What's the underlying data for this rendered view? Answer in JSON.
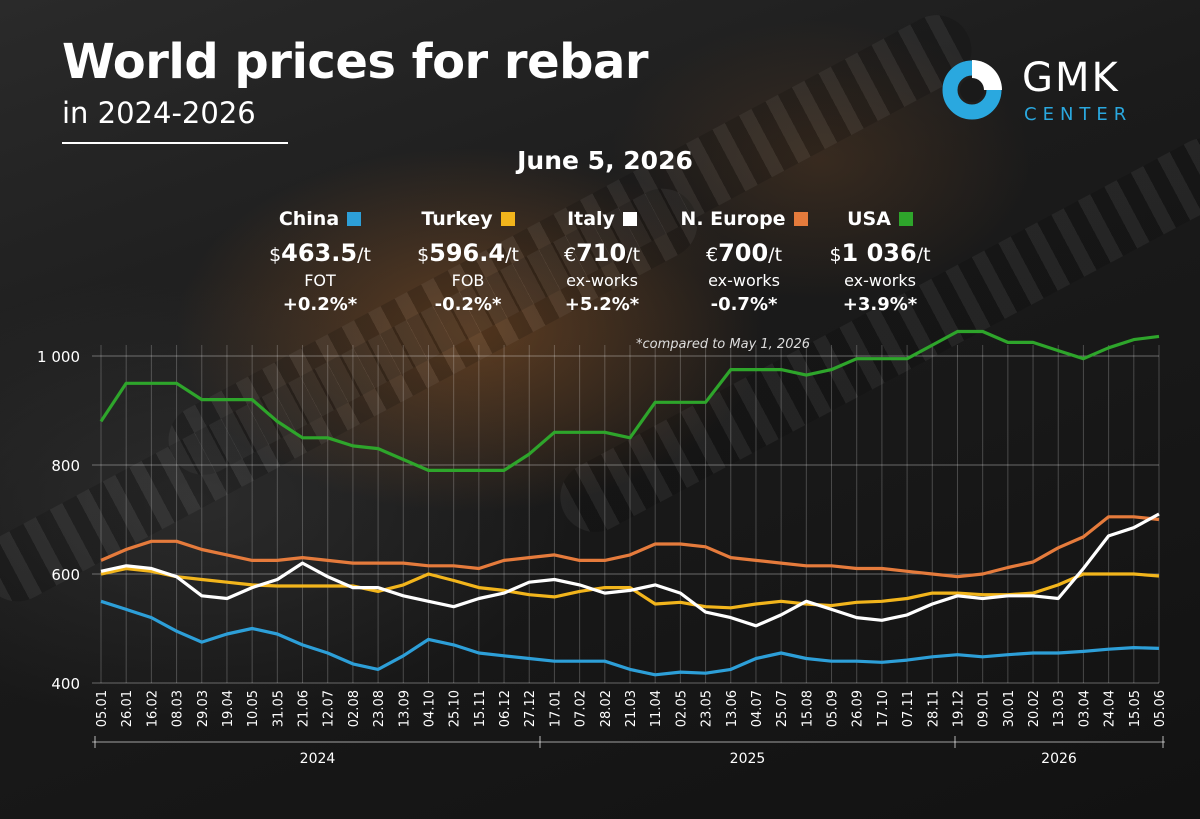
{
  "title": "World prices for rebar",
  "subtitle": "in 2024-2026",
  "date": "June 5, 2026",
  "logo": {
    "name": "GMK",
    "sub": "CENTER"
  },
  "note": "*compared to May 1, 2026",
  "stats": [
    {
      "market": "China",
      "currency": "$",
      "value": "463.5",
      "unit": "/t",
      "basis": "FOT",
      "change": "+0.2%*",
      "color": "#2d9fd8"
    },
    {
      "market": "Turkey",
      "currency": "$",
      "value": "596.4",
      "unit": "/t",
      "basis": "FOB",
      "change": "-0.2%*",
      "color": "#f2b51c"
    },
    {
      "market": "Italy",
      "currency": "€",
      "value": "710",
      "unit": "/t",
      "basis": "ex-works",
      "change": "+5.2%*",
      "color": "#ffffff"
    },
    {
      "market": "N. Europe",
      "currency": "€",
      "value": "700",
      "unit": "/t",
      "basis": "ex-works",
      "change": "-0.7%*",
      "color": "#e57b3c"
    },
    {
      "market": "USA",
      "currency": "$",
      "value": "1 036",
      "unit": "/t",
      "basis": "ex-works",
      "change": "+3.9%*",
      "color": "#2ea52b"
    }
  ],
  "chart_data": {
    "type": "line",
    "title": "World prices for rebar",
    "ylim": [
      400,
      1050
    ],
    "y_ticks": [
      400,
      600,
      800,
      1000
    ],
    "y_tick_labels": [
      "400",
      "600",
      "800",
      "1 000"
    ],
    "grid": true,
    "x_tick_labels": [
      "05.01",
      "26.01",
      "16.02",
      "08.03",
      "29.03",
      "19.04",
      "10.05",
      "31.05",
      "21.06",
      "12.07",
      "02.08",
      "23.08",
      "13.09",
      "04.10",
      "25.10",
      "15.11",
      "06.12",
      "27.12",
      "17.01",
      "07.02",
      "28.02",
      "21.03",
      "11.04",
      "02.05",
      "23.05",
      "13.06",
      "04.07",
      "25.07",
      "15.08",
      "05.09",
      "26.09",
      "17.10",
      "07.11",
      "28.11",
      "19.12",
      "09.01",
      "30.01",
      "20.02",
      "13.03",
      "03.04",
      "24.04",
      "15.05",
      "05.06"
    ],
    "years": [
      "2024",
      "2025",
      "2026"
    ],
    "x": [
      0,
      1,
      2,
      3,
      4,
      5,
      6,
      7,
      8,
      9,
      10,
      11,
      12,
      13,
      14,
      15,
      16,
      17,
      18,
      19,
      20,
      21,
      22,
      23,
      24,
      25,
      26,
      27,
      28,
      29,
      30,
      31,
      32,
      33,
      34,
      35,
      36,
      37,
      38,
      39,
      40,
      41,
      42
    ],
    "series": [
      {
        "name": "USA",
        "color": "#2ea52b",
        "values": [
          880,
          950,
          950,
          950,
          920,
          920,
          920,
          880,
          850,
          850,
          835,
          830,
          810,
          790,
          790,
          790,
          790,
          820,
          860,
          860,
          860,
          850,
          915,
          915,
          915,
          975,
          975,
          975,
          965,
          975,
          995,
          995,
          995,
          1020,
          1045,
          1045,
          1025,
          1025,
          1010,
          995,
          1015,
          1030,
          1036
        ]
      },
      {
        "name": "N. Europe",
        "color": "#e57b3c",
        "values": [
          625,
          645,
          660,
          660,
          645,
          635,
          625,
          625,
          630,
          625,
          620,
          620,
          620,
          615,
          615,
          610,
          625,
          630,
          635,
          625,
          625,
          635,
          655,
          655,
          650,
          630,
          625,
          620,
          615,
          615,
          610,
          610,
          605,
          600,
          595,
          600,
          612,
          622,
          648,
          668,
          705,
          705,
          700
        ]
      },
      {
        "name": "Turkey",
        "color": "#f2b51c",
        "values": [
          600,
          610,
          605,
          595,
          590,
          585,
          580,
          578,
          578,
          578,
          578,
          568,
          580,
          600,
          588,
          575,
          570,
          562,
          558,
          568,
          575,
          575,
          545,
          548,
          540,
          538,
          545,
          550,
          545,
          542,
          548,
          550,
          555,
          565,
          565,
          562,
          562,
          565,
          580,
          600,
          600,
          600,
          596.4
        ]
      },
      {
        "name": "Italy",
        "color": "#ffffff",
        "values": [
          605,
          615,
          610,
          595,
          560,
          555,
          575,
          590,
          620,
          595,
          575,
          575,
          560,
          550,
          540,
          555,
          565,
          585,
          590,
          580,
          565,
          570,
          580,
          565,
          530,
          520,
          505,
          525,
          550,
          535,
          520,
          515,
          525,
          545,
          560,
          555,
          560,
          560,
          555,
          610,
          670,
          685,
          710
        ]
      },
      {
        "name": "China",
        "color": "#2d9fd8",
        "values": [
          550,
          535,
          520,
          495,
          475,
          490,
          500,
          490,
          470,
          455,
          435,
          425,
          450,
          480,
          470,
          455,
          450,
          445,
          440,
          440,
          440,
          425,
          415,
          420,
          418,
          425,
          445,
          455,
          445,
          440,
          440,
          438,
          442,
          448,
          452,
          448,
          452,
          455,
          455,
          458,
          462,
          465,
          463.5
        ]
      }
    ]
  }
}
